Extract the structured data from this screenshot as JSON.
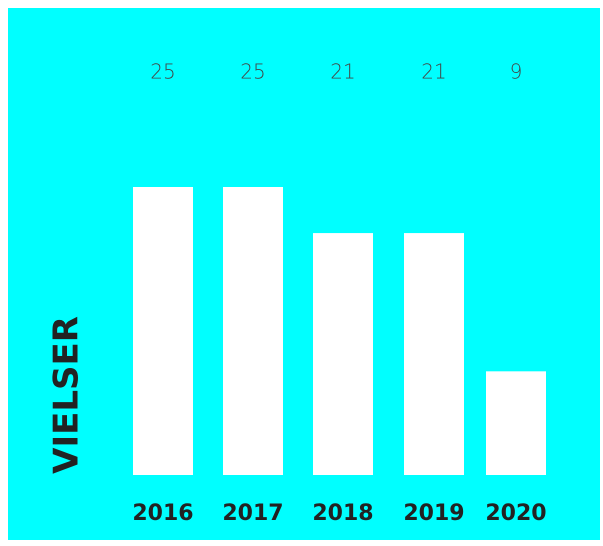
{
  "chart_data": {
    "type": "bar",
    "y_label": "VIELSER",
    "categories": [
      "2016",
      "2017",
      "2018",
      "2019",
      "2020"
    ],
    "values": [
      25,
      25,
      21,
      21,
      9
    ],
    "color": "#ffffff",
    "background": "#00ffff",
    "ylim": [
      0,
      25
    ]
  }
}
